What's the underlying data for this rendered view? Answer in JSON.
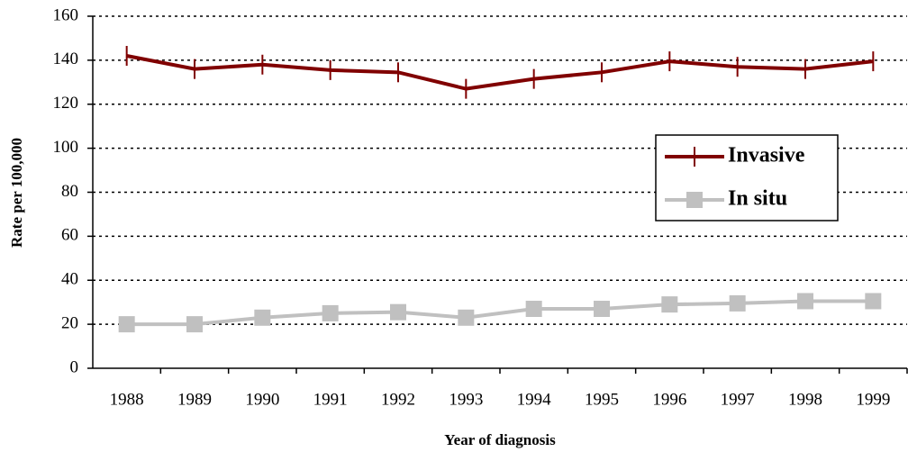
{
  "chart_data": {
    "type": "line",
    "x_label": "Year of diagnosis",
    "y_label": "Rate per 100,000",
    "categories": [
      "1988",
      "1989",
      "1990",
      "1991",
      "1992",
      "1993",
      "1994",
      "1995",
      "1996",
      "1997",
      "1998",
      "1999"
    ],
    "series": [
      {
        "name": "Invasive",
        "color": "#800000",
        "marker": "tick",
        "values": [
          142,
          136,
          138,
          135.5,
          134.5,
          127,
          131.5,
          134.5,
          139.5,
          137,
          136,
          139.5
        ]
      },
      {
        "name": "In situ",
        "color": "#c0c0c0",
        "marker": "square",
        "values": [
          20,
          20,
          23,
          25,
          25.5,
          23,
          27,
          27,
          29,
          29.5,
          30.5,
          30.5
        ]
      }
    ],
    "ylim": [
      0,
      160
    ],
    "yticks": [
      0,
      20,
      40,
      60,
      80,
      100,
      120,
      140,
      160
    ],
    "grid": true,
    "legend_position": "right"
  }
}
